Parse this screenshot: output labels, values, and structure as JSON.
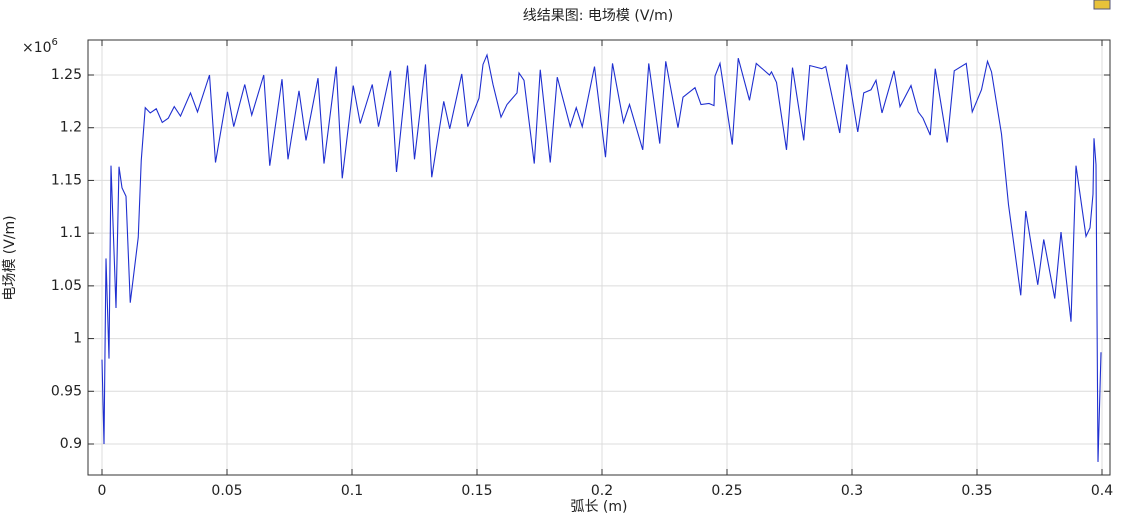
{
  "chart_data": {
    "type": "line",
    "title": "线结果图: 电场模 (V/m)",
    "xlabel": "弧长 (m)",
    "ylabel": "电场模 (V/m)",
    "y_multiplier": {
      "base": "×10",
      "exponent": "6"
    },
    "x": [
      0,
      0.0008,
      0.0016,
      0.0028,
      0.0036,
      0.0056,
      0.0068,
      0.008,
      0.0096,
      0.0113,
      0.0145,
      0.0157,
      0.0173,
      0.0193,
      0.0217,
      0.0241,
      0.0265,
      0.0289,
      0.0314,
      0.0354,
      0.0382,
      0.043,
      0.0454,
      0.0502,
      0.0527,
      0.0571,
      0.0599,
      0.0647,
      0.0671,
      0.072,
      0.0744,
      0.0788,
      0.0816,
      0.0864,
      0.0888,
      0.0937,
      0.0961,
      0.1005,
      0.1033,
      0.1081,
      0.1106,
      0.1154,
      0.1178,
      0.1222,
      0.125,
      0.1294,
      0.1319,
      0.1367,
      0.1391,
      0.1439,
      0.1463,
      0.1508,
      0.1524,
      0.154,
      0.1564,
      0.1596,
      0.162,
      0.166,
      0.1668,
      0.1688,
      0.1729,
      0.1753,
      0.1793,
      0.1821,
      0.1873,
      0.1897,
      0.1921,
      0.197,
      0.2014,
      0.2042,
      0.2086,
      0.211,
      0.2163,
      0.2187,
      0.2231,
      0.2255,
      0.2304,
      0.2324,
      0.2372,
      0.2396,
      0.2428,
      0.2448,
      0.2452,
      0.2472,
      0.2521,
      0.2545,
      0.259,
      0.2617,
      0.267,
      0.2678,
      0.2698,
      0.2738,
      0.2762,
      0.2807,
      0.2831,
      0.2879,
      0.2895,
      0.2951,
      0.2979,
      0.3023,
      0.3047,
      0.3076,
      0.3096,
      0.312,
      0.3168,
      0.3192,
      0.3236,
      0.3265,
      0.3284,
      0.3313,
      0.3333,
      0.3381,
      0.3409,
      0.3457,
      0.3481,
      0.3518,
      0.3542,
      0.3558,
      0.3598,
      0.3626,
      0.3675,
      0.3695,
      0.3743,
      0.3767,
      0.3811,
      0.3836,
      0.3876,
      0.3896,
      0.3936,
      0.3952,
      0.3964,
      0.3968,
      0.3976,
      0.3984,
      0.3996
    ],
    "series": [
      {
        "color": "#1f2fd0",
        "values": [
          0.98,
          0.9,
          1.076,
          0.981,
          1.164,
          1.029,
          1.163,
          1.143,
          1.135,
          1.034,
          1.096,
          1.169,
          1.219,
          1.214,
          1.218,
          1.205,
          1.209,
          1.22,
          1.211,
          1.233,
          1.215,
          1.25,
          1.167,
          1.234,
          1.201,
          1.241,
          1.212,
          1.25,
          1.164,
          1.246,
          1.17,
          1.235,
          1.188,
          1.247,
          1.166,
          1.258,
          1.152,
          1.24,
          1.204,
          1.241,
          1.201,
          1.254,
          1.158,
          1.259,
          1.17,
          1.26,
          1.153,
          1.225,
          1.199,
          1.251,
          1.201,
          1.228,
          1.26,
          1.269,
          1.241,
          1.21,
          1.222,
          1.233,
          1.252,
          1.245,
          1.166,
          1.255,
          1.167,
          1.248,
          1.201,
          1.219,
          1.201,
          1.258,
          1.172,
          1.261,
          1.205,
          1.222,
          1.179,
          1.261,
          1.185,
          1.263,
          1.2,
          1.229,
          1.238,
          1.222,
          1.223,
          1.221,
          1.249,
          1.261,
          1.184,
          1.266,
          1.226,
          1.261,
          1.25,
          1.253,
          1.243,
          1.179,
          1.257,
          1.188,
          1.259,
          1.256,
          1.258,
          1.195,
          1.26,
          1.196,
          1.233,
          1.236,
          1.245,
          1.214,
          1.254,
          1.22,
          1.24,
          1.215,
          1.209,
          1.193,
          1.256,
          1.186,
          1.254,
          1.261,
          1.215,
          1.236,
          1.263,
          1.253,
          1.194,
          1.127,
          1.041,
          1.121,
          1.051,
          1.094,
          1.038,
          1.101,
          1.016,
          1.164,
          1.097,
          1.105,
          1.137,
          1.19,
          1.165,
          0.883,
          0.987
        ]
      }
    ],
    "xlim": [
      -0.0056,
      0.4032
    ],
    "ylim": [
      0.8706,
      1.2832
    ],
    "xticks": [
      0,
      0.05,
      0.1,
      0.15,
      0.2,
      0.25,
      0.3,
      0.35,
      0.4
    ],
    "yticks": [
      0.9,
      0.95,
      1,
      1.05,
      1.1,
      1.15,
      1.2,
      1.25
    ],
    "grid": true
  }
}
